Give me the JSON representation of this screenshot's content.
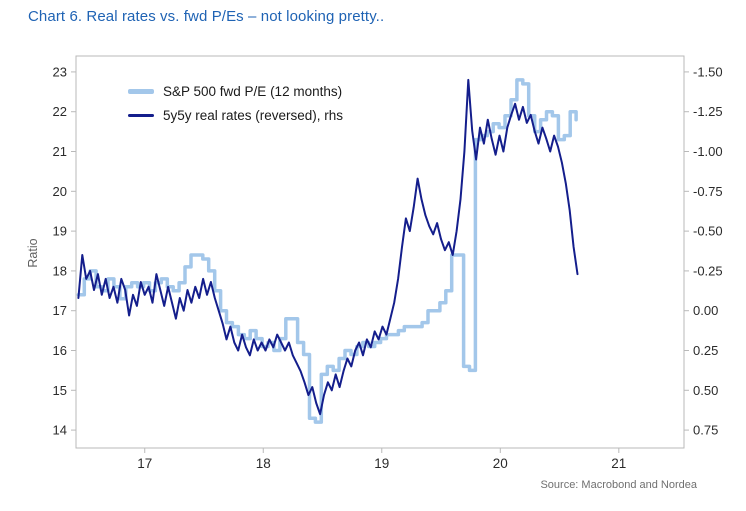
{
  "title": "Chart 6. Real rates vs. fwd P/Es – not looking pretty..",
  "source": "Source: Macrobond and Nordea",
  "colors": {
    "title_blue": "#1f63b4",
    "frame_gray": "#b9b9b9",
    "spx_light_blue": "#a3c7ea",
    "real_rates_navy": "#141e8c"
  },
  "chart_data": {
    "type": "line",
    "title": "Chart 6. Real rates vs. fwd P/Es – not looking pretty..",
    "ylabel_left": "Ratio",
    "legend_position": "top-left-inside",
    "grid": false,
    "ylim_left": [
      14,
      23
    ],
    "ylim_right": [
      -1.5,
      0.75
    ],
    "right_axis_reversed": true,
    "x_axis": {
      "ticks": [
        {
          "v": 2017,
          "label": "17"
        },
        {
          "v": 2018,
          "label": "18"
        },
        {
          "v": 2019,
          "label": "19"
        },
        {
          "v": 2020,
          "label": "20"
        },
        {
          "v": 2021,
          "label": "21"
        }
      ]
    },
    "left_axis": {
      "ticks": [
        23,
        22,
        21,
        20,
        19,
        18,
        17,
        16,
        15,
        14
      ]
    },
    "right_axis": {
      "ticks": [
        {
          "v": -1.5,
          "label": "-1.50"
        },
        {
          "v": -1.25,
          "label": "-1.25"
        },
        {
          "v": -1.0,
          "label": "-1.00"
        },
        {
          "v": -0.75,
          "label": "-0.75"
        },
        {
          "v": -0.5,
          "label": "-0.50"
        },
        {
          "v": -0.25,
          "label": "-0.25"
        },
        {
          "v": 0.0,
          "label": "0.00"
        },
        {
          "v": 0.25,
          "label": "0.25"
        },
        {
          "v": 0.5,
          "label": "0.50"
        },
        {
          "v": 0.75,
          "label": "0.75"
        }
      ]
    },
    "series": [
      {
        "id": "spx-fwd-pe-line",
        "name": "S&P 500 fwd P/E (12 months)",
        "axis": "left",
        "color": "#a3c7ea",
        "width": 3.5,
        "style": "step",
        "x_start": 2016.44,
        "x_step": 0.05,
        "values": [
          17.4,
          17.8,
          18.0,
          17.6,
          17.5,
          17.8,
          17.6,
          17.3,
          17.6,
          17.7,
          17.6,
          17.7,
          17.5,
          17.7,
          17.8,
          17.6,
          17.5,
          17.7,
          18.1,
          18.4,
          18.4,
          18.3,
          18.0,
          17.5,
          17.0,
          16.7,
          16.6,
          16.4,
          16.3,
          16.5,
          16.3,
          16.1,
          16.2,
          16.0,
          16.3,
          16.8,
          16.8,
          16.2,
          15.9,
          14.3,
          14.2,
          15.4,
          15.6,
          15.5,
          15.8,
          16.0,
          15.9,
          16.1,
          16.2,
          16.1,
          16.2,
          16.3,
          16.4,
          16.4,
          16.5,
          16.6,
          16.6,
          16.6,
          16.7,
          17.0,
          17.0,
          17.2,
          17.5,
          18.4,
          18.4,
          15.6,
          15.5,
          21.3,
          21.4,
          21.5,
          21.7,
          21.6,
          21.9,
          22.3,
          22.8,
          22.7,
          21.9,
          21.5,
          21.8,
          22.0,
          21.9,
          21.3,
          21.4,
          22.0,
          21.8
        ]
      },
      {
        "id": "real-rates-line",
        "name": "5y5y real rates (reversed), rhs",
        "axis": "right",
        "color": "#141e8c",
        "width": 2,
        "style": "line",
        "x_start": 2016.44,
        "x_step": 0.0329,
        "values": [
          -0.08,
          -0.35,
          -0.2,
          -0.25,
          -0.13,
          -0.23,
          -0.1,
          -0.2,
          -0.08,
          -0.15,
          -0.05,
          -0.2,
          -0.13,
          0.03,
          -0.1,
          -0.03,
          -0.18,
          -0.1,
          -0.15,
          -0.05,
          -0.23,
          -0.13,
          -0.03,
          -0.15,
          -0.05,
          0.05,
          -0.08,
          0.0,
          -0.13,
          -0.05,
          -0.15,
          -0.08,
          -0.2,
          -0.1,
          -0.18,
          -0.08,
          0.0,
          0.08,
          0.18,
          0.1,
          0.2,
          0.25,
          0.15,
          0.23,
          0.28,
          0.18,
          0.25,
          0.2,
          0.25,
          0.18,
          0.23,
          0.15,
          0.2,
          0.25,
          0.2,
          0.28,
          0.33,
          0.38,
          0.45,
          0.53,
          0.48,
          0.58,
          0.65,
          0.53,
          0.45,
          0.5,
          0.4,
          0.48,
          0.38,
          0.3,
          0.35,
          0.25,
          0.2,
          0.28,
          0.18,
          0.23,
          0.13,
          0.18,
          0.1,
          0.15,
          0.05,
          -0.05,
          -0.2,
          -0.4,
          -0.58,
          -0.5,
          -0.65,
          -0.83,
          -0.7,
          -0.6,
          -0.53,
          -0.48,
          -0.55,
          -0.45,
          -0.38,
          -0.43,
          -0.35,
          -0.5,
          -0.7,
          -1.0,
          -1.45,
          -1.13,
          -0.95,
          -1.15,
          -1.05,
          -1.2,
          -1.08,
          -0.98,
          -1.1,
          -1.0,
          -1.15,
          -1.23,
          -1.3,
          -1.2,
          -1.28,
          -1.18,
          -1.23,
          -1.13,
          -1.05,
          -1.15,
          -1.08,
          -1.0,
          -1.1,
          -1.03,
          -0.93,
          -0.8,
          -0.63,
          -0.4,
          -0.23
        ]
      }
    ]
  }
}
